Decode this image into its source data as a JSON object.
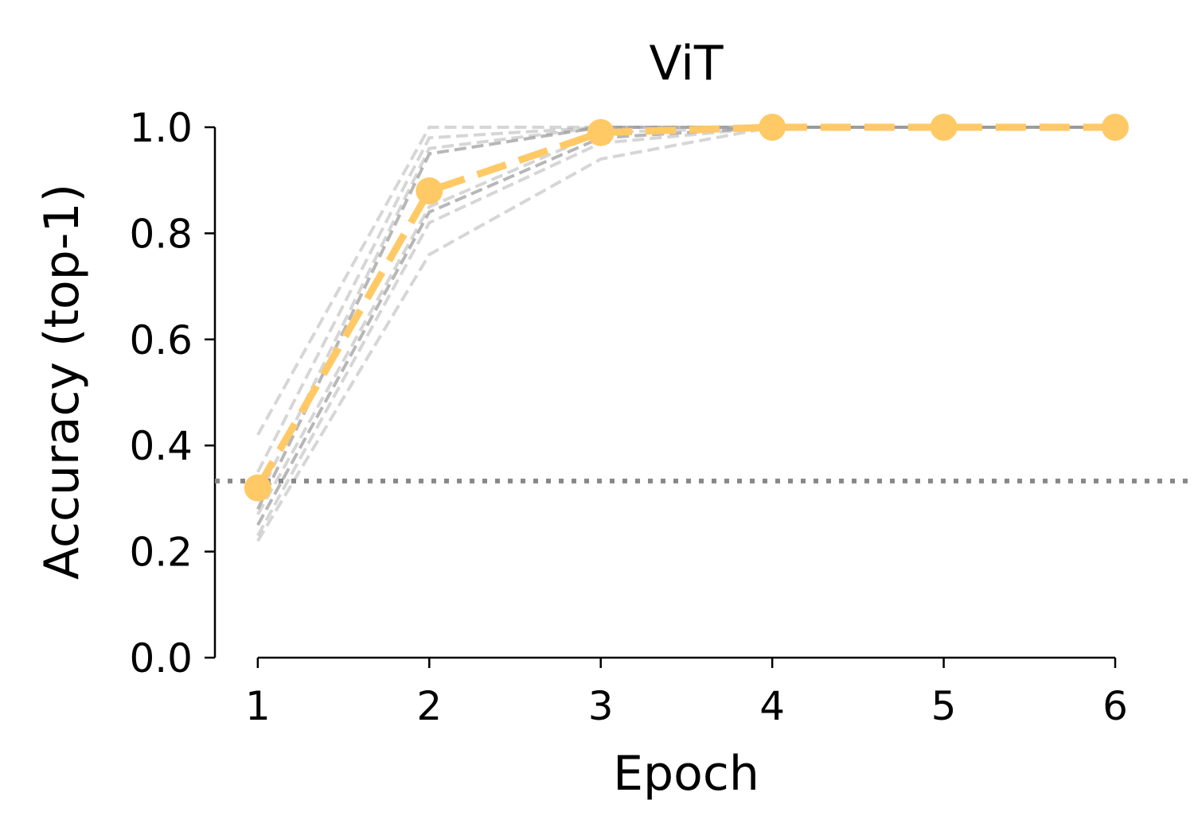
{
  "chart_data": {
    "type": "line",
    "title": "ViT",
    "xlabel": "Epoch",
    "ylabel": "Accuracy (top-1)",
    "x": [
      1,
      2,
      3,
      4,
      5,
      6
    ],
    "xlim": [
      0.75,
      6.0
    ],
    "ylim": [
      0.0,
      1.0
    ],
    "xticks": [
      "1",
      "2",
      "3",
      "4",
      "5",
      "6"
    ],
    "yticks": [
      "0.0",
      "0.2",
      "0.4",
      "0.6",
      "0.8",
      "1.0"
    ],
    "grid": false,
    "chance_level": 0.333,
    "highlight_color": "#FFC966",
    "background_color": "#999999",
    "highlight_series": {
      "values": [
        0.32,
        0.88,
        0.99,
        1.0,
        1.0,
        1.0
      ]
    },
    "background_series": [
      {
        "values": [
          0.42,
          1.0,
          1.0,
          1.0,
          1.0,
          1.0
        ],
        "opacity": 0.4
      },
      {
        "values": [
          0.35,
          0.98,
          1.0,
          1.0,
          1.0,
          1.0
        ],
        "opacity": 0.4
      },
      {
        "values": [
          0.3,
          0.96,
          1.0,
          1.0,
          1.0,
          1.0
        ],
        "opacity": 0.4
      },
      {
        "values": [
          0.28,
          0.95,
          1.0,
          1.0,
          1.0,
          1.0
        ],
        "opacity": 0.7
      },
      {
        "values": [
          0.27,
          0.85,
          0.99,
          1.0,
          1.0,
          1.0
        ],
        "opacity": 0.4
      },
      {
        "values": [
          0.25,
          0.84,
          0.98,
          1.0,
          1.0,
          1.0
        ],
        "opacity": 0.7
      },
      {
        "values": [
          0.23,
          0.82,
          0.97,
          1.0,
          1.0,
          1.0
        ],
        "opacity": 0.4
      },
      {
        "values": [
          0.22,
          0.76,
          0.94,
          1.0,
          1.0,
          1.0
        ],
        "opacity": 0.4
      }
    ]
  }
}
